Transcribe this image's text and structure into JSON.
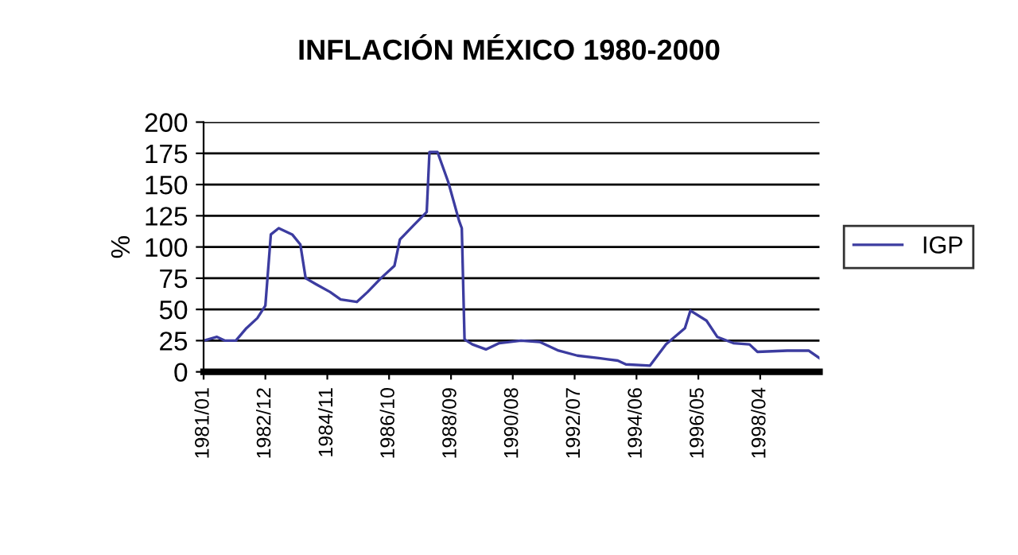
{
  "chart_data": {
    "type": "line",
    "title": "INFLACIÓN MÉXICO 1980-2000",
    "ylabel": "%",
    "x": [
      "1981-01",
      "1981-06",
      "1981-09",
      "1982-01",
      "1982-05",
      "1982-09",
      "1982-12",
      "1983-02",
      "1983-05",
      "1983-10",
      "1984-01",
      "1984-03",
      "1984-07",
      "1984-12",
      "1985-04",
      "1985-10",
      "1986-02",
      "1986-07",
      "1986-12",
      "1987-02",
      "1987-07",
      "1987-12",
      "1988-01",
      "1988-04",
      "1988-08",
      "1988-12",
      "1989-01",
      "1989-02",
      "1989-05",
      "1989-10",
      "1990-03",
      "1990-11",
      "1991-06",
      "1992-01",
      "1992-08",
      "1993-04",
      "1993-11",
      "1994-02",
      "1994-11",
      "1995-05",
      "1995-12",
      "1996-02",
      "1996-08",
      "1996-12",
      "1997-06",
      "1997-12",
      "1998-03",
      "1999-02",
      "1999-10",
      "2000-02"
    ],
    "series": [
      {
        "name": "IGP",
        "color": "#3c3ca0",
        "values": [
          25,
          28,
          25,
          25,
          35,
          43,
          53,
          110,
          115,
          110,
          102,
          75,
          70,
          64,
          58,
          56,
          64,
          75,
          85,
          106,
          117,
          128,
          176,
          176,
          152,
          121,
          115,
          26,
          22,
          18,
          23,
          25,
          24,
          17,
          13,
          11,
          9,
          6,
          5,
          22,
          35,
          49,
          41,
          28,
          23,
          22,
          16,
          17,
          17,
          11
        ]
      }
    ],
    "xlim": [
      "1981-01",
      "2000-02"
    ],
    "xticks": [
      {
        "value": "1981-01",
        "label": "1981/01"
      },
      {
        "value": "1982-12",
        "label": "1982/12"
      },
      {
        "value": "1984-11",
        "label": "1984/11"
      },
      {
        "value": "1986-10",
        "label": "1986/10"
      },
      {
        "value": "1988-09",
        "label": "1988/09"
      },
      {
        "value": "1990-08",
        "label": "1990/08"
      },
      {
        "value": "1992-07",
        "label": "1992/07"
      },
      {
        "value": "1994-06",
        "label": "1994/06"
      },
      {
        "value": "1996-05",
        "label": "1996/05"
      },
      {
        "value": "1998-04",
        "label": "1998/04"
      }
    ],
    "ylim": [
      0,
      200
    ],
    "yticks": [
      0,
      25,
      50,
      75,
      100,
      125,
      150,
      175,
      200
    ],
    "grid": "y",
    "legend": "right",
    "marker": "none",
    "line_style": "solid"
  }
}
